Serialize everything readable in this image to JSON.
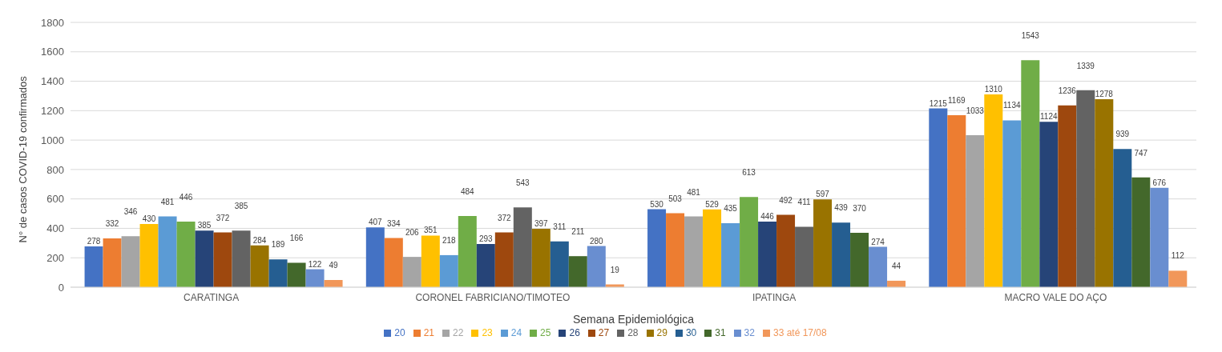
{
  "chart_data": {
    "type": "bar",
    "xlabel": "Semana Epidemiológica",
    "ylabel": "N° de casos COVID-19 confirmados",
    "categories": [
      "CARATINGA",
      "CORONEL FABRICIANO/TIMOTEO",
      "IPATINGA",
      "MACRO VALE DO AÇO"
    ],
    "series": [
      {
        "name": "20",
        "color": "#4472c4",
        "values": [
          278,
          407,
          530,
          1215
        ]
      },
      {
        "name": "21",
        "color": "#ed7d31",
        "values": [
          332,
          334,
          503,
          1169
        ]
      },
      {
        "name": "22",
        "color": "#a5a5a5",
        "values": [
          346,
          206,
          481,
          1033
        ]
      },
      {
        "name": "23",
        "color": "#ffc000",
        "values": [
          430,
          351,
          529,
          1310
        ]
      },
      {
        "name": "24",
        "color": "#5b9bd5",
        "values": [
          481,
          218,
          435,
          1134
        ]
      },
      {
        "name": "25",
        "color": "#70ad47",
        "values": [
          446,
          484,
          613,
          1543
        ]
      },
      {
        "name": "26",
        "color": "#264478",
        "values": [
          385,
          293,
          446,
          1124
        ]
      },
      {
        "name": "27",
        "color": "#9e480e",
        "values": [
          372,
          372,
          492,
          1236
        ]
      },
      {
        "name": "28",
        "color": "#636363",
        "values": [
          385,
          543,
          411,
          1339
        ]
      },
      {
        "name": "29",
        "color": "#997300",
        "values": [
          284,
          397,
          597,
          1278
        ]
      },
      {
        "name": "30",
        "color": "#255e91",
        "values": [
          189,
          311,
          439,
          939
        ]
      },
      {
        "name": "31",
        "color": "#43682b",
        "values": [
          166,
          211,
          370,
          747
        ]
      },
      {
        "name": "32",
        "color": "#698ed0",
        "values": [
          122,
          280,
          274,
          676
        ]
      },
      {
        "name": "33 até 17/08",
        "color": "#f1975a",
        "values": [
          49,
          19,
          44,
          112
        ]
      }
    ],
    "ylim": [
      0,
      1800
    ],
    "yticks": [
      0,
      200,
      400,
      600,
      800,
      1000,
      1200,
      1400,
      1600,
      1800
    ],
    "grid": "y",
    "legend": "bottom",
    "data_labels": true
  }
}
